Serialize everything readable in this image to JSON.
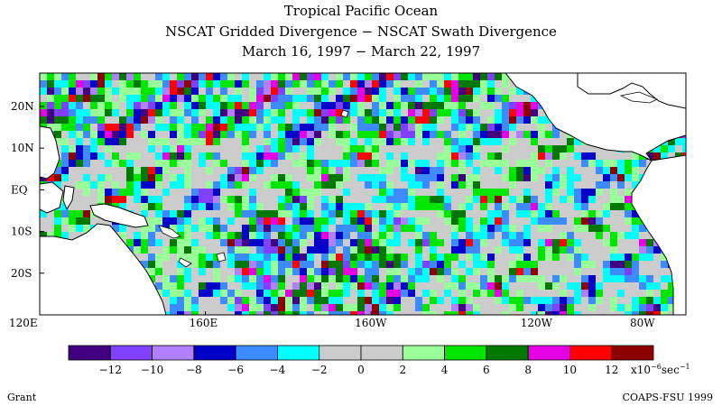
{
  "title": {
    "line1": "Tropical Pacific Ocean",
    "line2": "NSCAT Gridded Divergence − NSCAT Swath Divergence",
    "line3": "March 16, 1997 − March 22, 1997"
  },
  "map": {
    "lon_range": [
      120,
      276
    ],
    "lat_range": [
      -30,
      28
    ],
    "x_axis": {
      "ticks": [
        {
          "lon": 120,
          "label": "120E"
        },
        {
          "lon": 160,
          "label": "160E"
        },
        {
          "lon": 200,
          "label": "160W"
        },
        {
          "lon": 240,
          "label": "120W"
        },
        {
          "lon": 280,
          "label": "80W"
        }
      ]
    },
    "y_axis": {
      "ticks": [
        {
          "lat": 20,
          "label": "20N"
        },
        {
          "lat": 10,
          "label": "10N"
        },
        {
          "lat": 0,
          "label": "EQ"
        },
        {
          "lat": -10,
          "label": "10S"
        },
        {
          "lat": -20,
          "label": "20S"
        }
      ]
    }
  },
  "colorbar": {
    "colors": [
      "#400080",
      "#8040ff",
      "#b080ff",
      "#0000c8",
      "#3c8cff",
      "#00ffff",
      "#cccccc",
      "#cccccc",
      "#99ff99",
      "#00e600",
      "#007800",
      "#e600e6",
      "#ff0000",
      "#8c0000"
    ],
    "labels": [
      "−12",
      "−10",
      "−8",
      "−6",
      "−4",
      "−2",
      "0",
      "2",
      "4",
      "6",
      "8",
      "10",
      "12"
    ],
    "units_prefix": "x10",
    "units_exponent": "−6",
    "units_suffix": "sec",
    "units_suffix_exponent": "−1"
  },
  "credits": {
    "left": "Grant",
    "right": "COAPS-FSU 1999"
  }
}
